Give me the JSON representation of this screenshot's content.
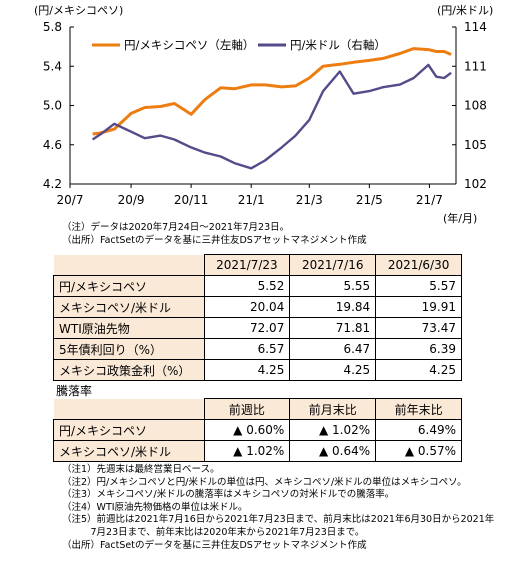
{
  "chart_data": {
    "type": "line",
    "left_axis_title": "(円/メキシコペソ)",
    "right_axis_title": "(円/米ドル)",
    "x_unit": "(年/月)",
    "x_ticks": [
      "20/7",
      "20/9",
      "20/11",
      "21/1",
      "21/3",
      "21/5",
      "21/7"
    ],
    "ylim_left": [
      4.2,
      5.8
    ],
    "yticks_left": [
      "4.2",
      "4.6",
      "5.0",
      "5.4",
      "5.8"
    ],
    "ylim_right": [
      102,
      114
    ],
    "yticks_right": [
      "102",
      "105",
      "108",
      "111",
      "114"
    ],
    "grid": false,
    "legend_position": "top",
    "series": [
      {
        "name": "円/メキシコペソ（左軸）",
        "axis": "left",
        "color": "#ee7d11",
        "x": [
          "2020-07-24",
          "2020-08-01",
          "2020-08-15",
          "2020-09-01",
          "2020-09-15",
          "2020-10-01",
          "2020-10-15",
          "2020-11-01",
          "2020-11-15",
          "2020-12-01",
          "2020-12-15",
          "2021-01-01",
          "2021-01-15",
          "2021-02-01",
          "2021-02-15",
          "2021-03-01",
          "2021-03-15",
          "2021-04-01",
          "2021-04-15",
          "2021-05-01",
          "2021-05-15",
          "2021-06-01",
          "2021-06-15",
          "2021-06-30",
          "2021-07-08",
          "2021-07-16",
          "2021-07-23"
        ],
        "values": [
          4.71,
          4.72,
          4.76,
          4.92,
          4.98,
          4.99,
          5.02,
          4.91,
          5.06,
          5.18,
          5.17,
          5.21,
          5.21,
          5.19,
          5.2,
          5.28,
          5.4,
          5.42,
          5.44,
          5.46,
          5.48,
          5.53,
          5.58,
          5.57,
          5.55,
          5.55,
          5.52
        ]
      },
      {
        "name": "円/米ドル（右軸）",
        "axis": "right",
        "color": "#554b8a",
        "x": [
          "2020-07-24",
          "2020-08-01",
          "2020-08-15",
          "2020-09-01",
          "2020-09-15",
          "2020-10-01",
          "2020-10-15",
          "2020-11-01",
          "2020-11-15",
          "2020-12-01",
          "2020-12-15",
          "2021-01-01",
          "2021-01-15",
          "2021-02-01",
          "2021-02-15",
          "2021-03-01",
          "2021-03-15",
          "2021-04-01",
          "2021-04-15",
          "2021-05-01",
          "2021-05-15",
          "2021-06-01",
          "2021-06-15",
          "2021-06-30",
          "2021-07-08",
          "2021-07-16",
          "2021-07-23"
        ],
        "values": [
          105.4,
          105.8,
          106.6,
          106.0,
          105.5,
          105.7,
          105.4,
          104.8,
          104.4,
          104.1,
          103.6,
          103.2,
          103.8,
          104.8,
          105.7,
          106.9,
          109.1,
          110.6,
          108.9,
          109.1,
          109.4,
          109.6,
          110.1,
          111.1,
          110.2,
          110.1,
          110.5
        ]
      }
    ]
  },
  "notes": [
    "（注）データは2020年7月24日～2021年7月23日。",
    "（出所）FactSetのデータを基に三井住友DSアセットマネジメント作成"
  ],
  "table1": {
    "headers": [
      "",
      "2021/7/23",
      "2021/7/16",
      "2021/6/30"
    ],
    "rows": [
      [
        "円/メキシコペソ",
        "5.52",
        "5.55",
        "5.57"
      ],
      [
        "メキシコペソ/米ドル",
        "20.04",
        "19.84",
        "19.91"
      ],
      [
        "WTI原油先物",
        "72.07",
        "71.81",
        "73.47"
      ],
      [
        "5年債利回り（%）",
        "6.57",
        "6.47",
        "6.39"
      ],
      [
        "メキシコ政策金利（%）",
        "4.25",
        "4.25",
        "4.25"
      ]
    ]
  },
  "table2": {
    "title": "騰落率",
    "headers": [
      "",
      "前週比",
      "前月末比",
      "前年末比"
    ],
    "rows": [
      [
        "円/メキシコペソ",
        "▲ 0.60%",
        "▲ 1.02%",
        "6.49%"
      ],
      [
        "メキシコペソ/米ドル",
        "▲ 1.02%",
        "▲ 0.64%",
        "▲ 0.57%"
      ]
    ]
  },
  "footnotes": [
    "（注1）先週末は最終営業日ベース。",
    "（注2）円/メキシコペソと円/米ドルの単位は円、メキシコペソ/米ドルの単位はメキシコペソ。",
    "（注3）メキシコペソ/米ドルの騰落率はメキシコペソの対米ドルでの騰落率。",
    "（注4）WTI原油先物価格の単位は米ドル。",
    "（注5）前週比は2021年7月16日から2021年7月23日まで、前月末比は2021年6月30日から2021年",
    "　　　7月23日まで、前年末比は2020年末から2021年7月23日まで。",
    "（出所）FactSetのデータを基に三井住友DSアセットマネジメント作成"
  ]
}
